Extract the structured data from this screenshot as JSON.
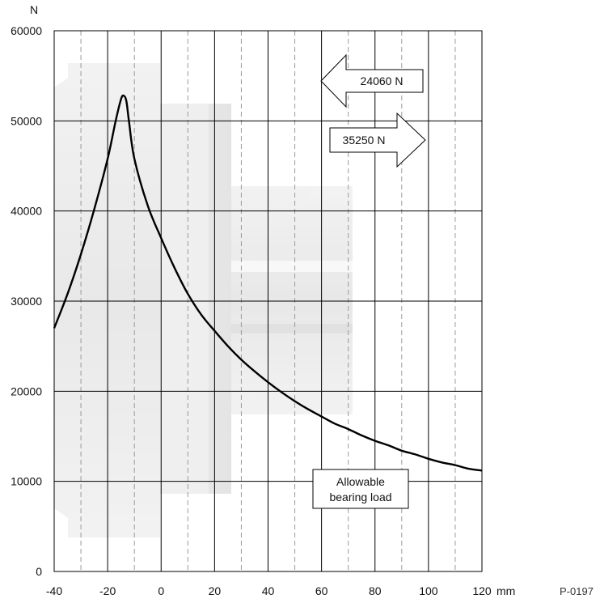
{
  "chart_data": {
    "type": "line",
    "title": "",
    "xlabel": "mm",
    "ylabel": "N",
    "xlim": [
      -40,
      120
    ],
    "ylim": [
      0,
      60000
    ],
    "x_ticks": [
      "-40",
      "-20",
      "0",
      "20",
      "40",
      "60",
      "80",
      "100",
      "120"
    ],
    "y_ticks": [
      "0",
      "10000",
      "20000",
      "30000",
      "40000",
      "50000",
      "60000"
    ],
    "x_minor_dashed": [
      -30,
      -10,
      10,
      30,
      50,
      70,
      90,
      110
    ],
    "grid": true,
    "series": [
      {
        "x": [
          -40,
          -35,
          -30,
          -25,
          -20,
          -17,
          -15,
          -14,
          -13,
          -12,
          -10,
          -5,
          0,
          5,
          10,
          15,
          20,
          25,
          30,
          35,
          40,
          45,
          50,
          55,
          60,
          65,
          70,
          75,
          80,
          85,
          90,
          95,
          100,
          105,
          110,
          115,
          120
        ],
        "y": [
          27000,
          30800,
          35200,
          40200,
          45800,
          50000,
          52400,
          52800,
          52200,
          49900,
          45800,
          40600,
          37000,
          33700,
          30800,
          28500,
          26700,
          25000,
          23500,
          22200,
          21000,
          19900,
          18900,
          18000,
          17200,
          16400,
          15800,
          15100,
          14500,
          14000,
          13400,
          13000,
          12500,
          12100,
          11800,
          11400,
          11200
        ]
      }
    ],
    "annotations": {
      "arrow_left": "24060 N",
      "arrow_right": "35250 N",
      "curve_label_line1": "Allowable",
      "curve_label_line2": "bearing load",
      "ref_code": "P-0197"
    },
    "colors": {
      "curve": "#000000",
      "grid": "#000000",
      "dashed_grid": "#9a9a9a",
      "background_shape": "#e6e6e6"
    }
  }
}
